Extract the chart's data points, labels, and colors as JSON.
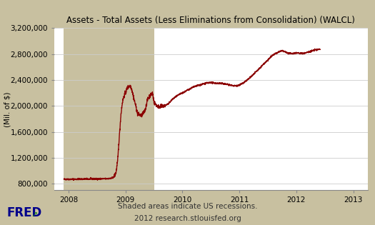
{
  "title": "Assets - Total Assets (Less Eliminations from Consolidation) (WALCL)",
  "ylabel": "(Mil. of $)",
  "background_outer": "#c8c0a0",
  "background_plot": "#ffffff",
  "recession_color": "#c8c0a0",
  "line_color": "#8b0000",
  "line_width": 1.0,
  "ylim": [
    700000,
    3200000
  ],
  "yticks": [
    800000,
    1200000,
    1600000,
    2000000,
    2400000,
    2800000,
    3200000
  ],
  "xlim_start": 2007.75,
  "xlim_end": 2013.25,
  "xticks": [
    2008,
    2009,
    2010,
    2011,
    2012,
    2013
  ],
  "recession_start": 2007.917,
  "recession_end": 2009.5,
  "footer_line1": "Shaded areas indicate US recessions.",
  "footer_line2": "2012 research.stlouisfed.org",
  "title_fontsize": 8.5,
  "axis_label_fontsize": 7.5,
  "tick_fontsize": 7.5,
  "footer_fontsize": 7.5,
  "fred_fontsize": 12
}
